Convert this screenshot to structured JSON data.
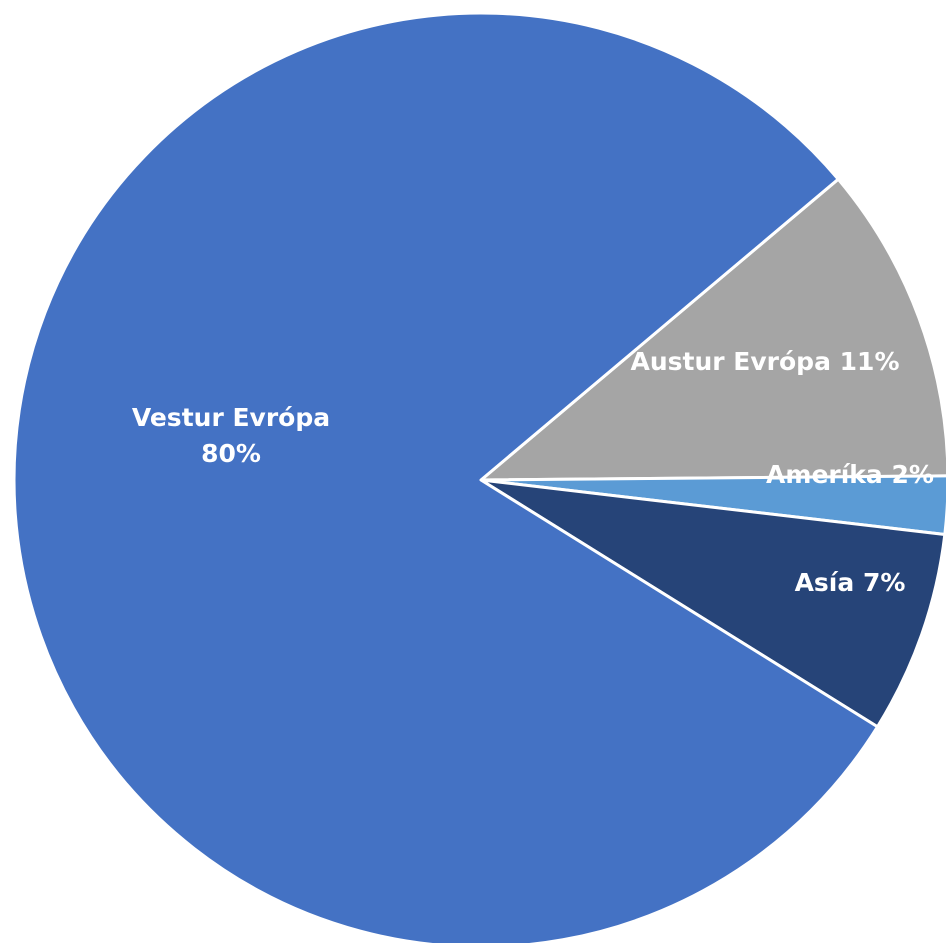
{
  "chart_data": {
    "type": "pie",
    "title": "",
    "legend": "none",
    "slices": [
      {
        "label": "Austur Evrópa",
        "value": 11,
        "display": "Austur Evrópa 11%",
        "color": "#a5a5a5"
      },
      {
        "label": "Ameríka",
        "value": 2,
        "display": "Ameríka 2%",
        "color": "#5b9bd5"
      },
      {
        "label": "Asía",
        "value": 7,
        "display": "Asía 7%",
        "color": "#264478"
      },
      {
        "label": "Vestur Evrópa",
        "value": 80,
        "display_lines": [
          "Vestur Evrópa",
          "80%"
        ],
        "color": "#4472c4"
      }
    ]
  }
}
